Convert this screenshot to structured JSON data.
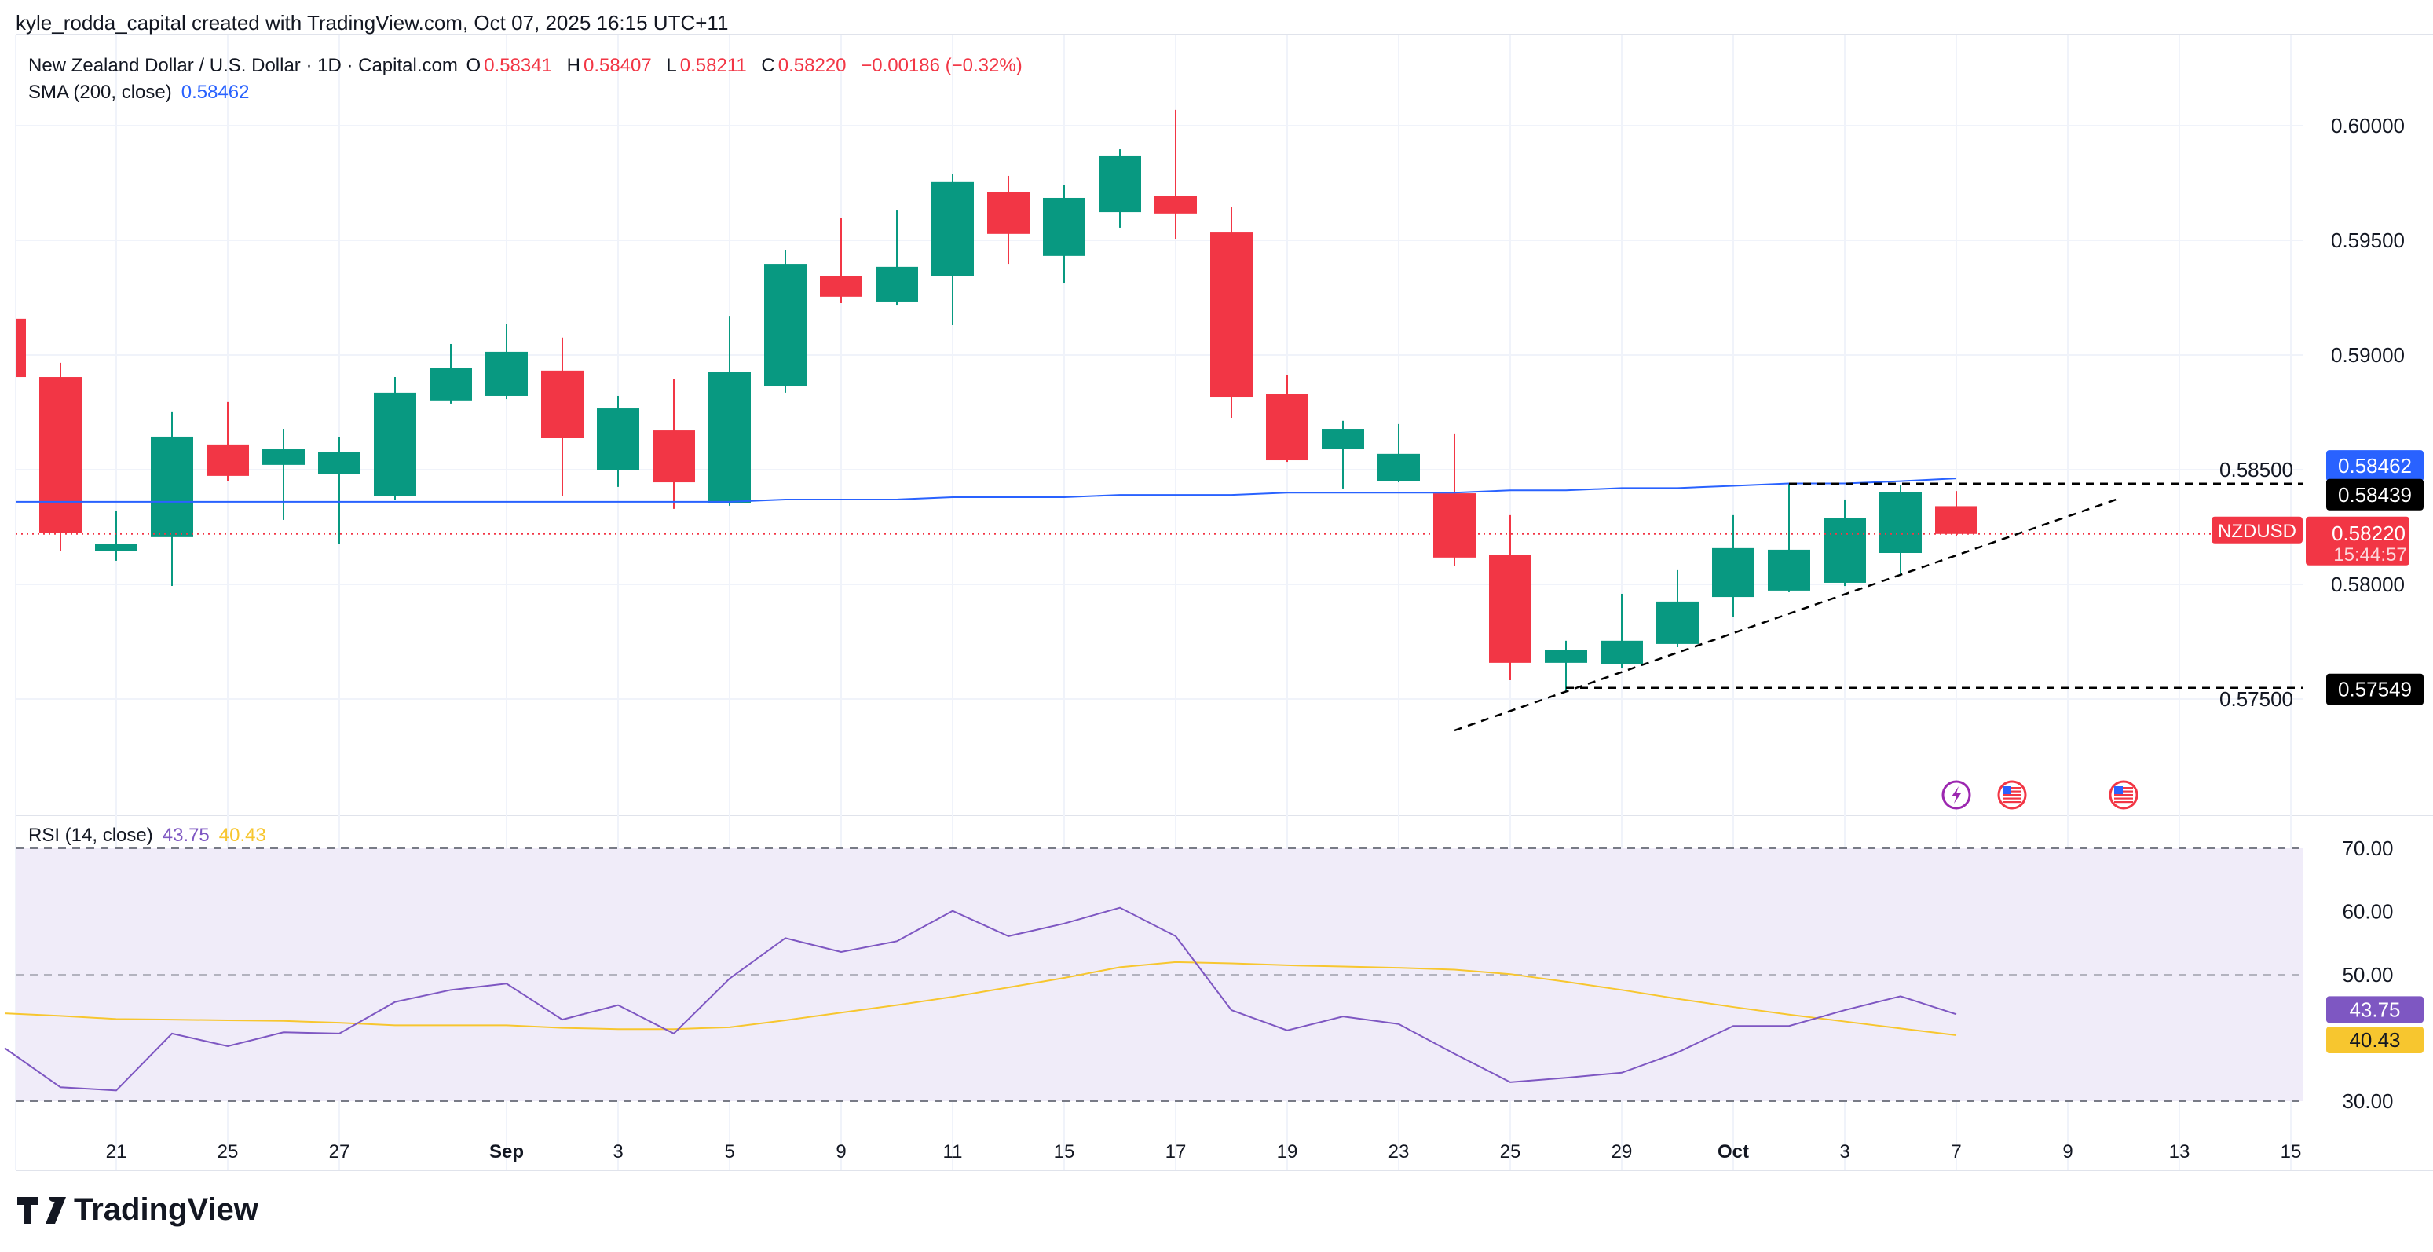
{
  "header": {
    "attribution": "kyle_rodda_capital created with TradingView.com, Oct 07, 2025 16:15 UTC+11"
  },
  "legend": {
    "symbol": "New Zealand Dollar / U.S. Dollar · 1D · Capital.com",
    "o_label": "O",
    "o": "0.58341",
    "h_label": "H",
    "h": "0.58407",
    "l_label": "L",
    "l": "0.58211",
    "c_label": "C",
    "c": "0.58220",
    "change": "−0.00186 (−0.32%)",
    "sma_label": "SMA (200, close)",
    "sma_value": "0.58462",
    "rsi_label": "RSI (14, close)",
    "rsi_value": "43.75",
    "rsi_ma_value": "40.43"
  },
  "brand": {
    "logo_text": "TradingView"
  },
  "colors": {
    "up": "#089981",
    "down": "#f23645",
    "sma": "#2962ff",
    "rsi": "#7e57c2",
    "rsi_ma": "#f7c62f",
    "rsi_band": "#f0ecf9"
  },
  "chart_data": [
    {
      "type": "candlestick",
      "symbol": "NZDUSD",
      "dates": [
        "Aug 19",
        "Aug 20",
        "Aug 21",
        "Aug 22",
        "Aug 25",
        "Aug 26",
        "Aug 27",
        "Aug 28",
        "Aug 29",
        "Sep 1",
        "Sep 2",
        "Sep 3",
        "Sep 4",
        "Sep 5",
        "Sep 8",
        "Sep 9",
        "Sep 10",
        "Sep 11",
        "Sep 12",
        "Sep 15",
        "Sep 16",
        "Sep 17",
        "Sep 18",
        "Sep 19",
        "Sep 22",
        "Sep 23",
        "Sep 24",
        "Sep 25",
        "Sep 26",
        "Sep 29",
        "Sep 30",
        "Oct 1",
        "Oct 2",
        "Oct 3",
        "Oct 6",
        "Oct 7"
      ],
      "ohlc": [
        [
          0.59158,
          0.5917,
          0.589,
          0.58904
        ],
        [
          0.58904,
          0.58966,
          0.58144,
          0.58226
        ],
        [
          0.58144,
          0.58322,
          0.58103,
          0.58178
        ],
        [
          0.58206,
          0.58754,
          0.57993,
          0.58644
        ],
        [
          0.5861,
          0.58795,
          0.58452,
          0.58473
        ],
        [
          0.58521,
          0.58678,
          0.58281,
          0.58589
        ],
        [
          0.5848,
          0.58644,
          0.58178,
          0.58576
        ],
        [
          0.58384,
          0.58904,
          0.5837,
          0.58836
        ],
        [
          0.58802,
          0.59048,
          0.58788,
          0.58945
        ],
        [
          0.58822,
          0.59137,
          0.58808,
          0.59014
        ],
        [
          0.58932,
          0.59076,
          0.58384,
          0.58637
        ],
        [
          0.585,
          0.58822,
          0.58425,
          0.58767
        ],
        [
          0.58671,
          0.58897,
          0.58329,
          0.58445
        ],
        [
          0.58356,
          0.59171,
          0.58343,
          0.58925
        ],
        [
          0.58863,
          0.59459,
          0.58836,
          0.59397
        ],
        [
          0.59343,
          0.59596,
          0.59226,
          0.59254
        ],
        [
          0.59233,
          0.5963,
          0.59219,
          0.59384
        ],
        [
          0.59343,
          0.59788,
          0.5913,
          0.59754
        ],
        [
          0.59712,
          0.59781,
          0.59397,
          0.59528
        ],
        [
          0.59432,
          0.5974,
          0.59315,
          0.59685
        ],
        [
          0.59623,
          0.59897,
          0.59555,
          0.5987
        ],
        [
          0.59692,
          0.60069,
          0.59507,
          0.59617
        ],
        [
          0.59534,
          0.59644,
          0.58726,
          0.58815
        ],
        [
          0.58829,
          0.58911,
          0.58534,
          0.58541
        ],
        [
          0.58589,
          0.58713,
          0.58418,
          0.58678
        ],
        [
          0.58452,
          0.58699,
          0.58445,
          0.58569
        ],
        [
          0.58397,
          0.58658,
          0.58082,
          0.58117
        ],
        [
          0.5813,
          0.58302,
          0.57582,
          0.57658
        ],
        [
          0.57658,
          0.57754,
          0.57534,
          0.57713
        ],
        [
          0.57651,
          0.57959,
          0.57637,
          0.57754
        ],
        [
          0.5774,
          0.58062,
          0.57726,
          0.57925
        ],
        [
          0.57945,
          0.58302,
          0.57856,
          0.58158
        ],
        [
          0.57973,
          0.58439,
          0.57966,
          0.58151
        ],
        [
          0.58007,
          0.5837,
          0.57993,
          0.58288
        ],
        [
          0.58137,
          0.58432,
          0.58041,
          0.58404
        ],
        [
          0.58341,
          0.58407,
          0.58211,
          0.5822
        ]
      ],
      "sma200": [
        0.5836,
        0.5836,
        0.5836,
        0.5836,
        0.5836,
        0.5836,
        0.5836,
        0.5836,
        0.5836,
        0.5836,
        0.5836,
        0.5836,
        0.5836,
        0.5836,
        0.5837,
        0.5837,
        0.5837,
        0.5838,
        0.5838,
        0.5838,
        0.5839,
        0.5839,
        0.5839,
        0.584,
        0.584,
        0.584,
        0.584,
        0.5841,
        0.5841,
        0.5842,
        0.5842,
        0.5843,
        0.5844,
        0.5844,
        0.5845,
        0.58462
      ],
      "y_ticks": [
        "0.60000",
        "0.59500",
        "0.59000",
        "0.58500",
        "0.58000",
        "0.57500"
      ],
      "x_ticks": [
        {
          "index": 2,
          "label": "21"
        },
        {
          "index": 4,
          "label": "25"
        },
        {
          "index": 6,
          "label": "27"
        },
        {
          "index": 9,
          "label": "Sep"
        },
        {
          "index": 11,
          "label": "3"
        },
        {
          "index": 13,
          "label": "5"
        },
        {
          "index": 15,
          "label": "9"
        },
        {
          "index": 17,
          "label": "11"
        },
        {
          "index": 19,
          "label": "15"
        },
        {
          "index": 21,
          "label": "17"
        },
        {
          "index": 23,
          "label": "19"
        },
        {
          "index": 25,
          "label": "23"
        },
        {
          "index": 27,
          "label": "25"
        },
        {
          "index": 29,
          "label": "29"
        },
        {
          "index": 31,
          "label": "Oct"
        },
        {
          "index": 33,
          "label": "3"
        },
        {
          "index": 35,
          "label": "7"
        },
        {
          "index": 37,
          "label": "9"
        },
        {
          "index": 39,
          "label": "13"
        },
        {
          "index": 41,
          "label": "15"
        }
      ],
      "ylim": [
        0.5715,
        0.602
      ],
      "drawings": {
        "resistance": {
          "price": 0.58439,
          "label": "0.58439",
          "from_index": 32
        },
        "support": {
          "price": 0.57549,
          "label": "0.57549",
          "from_index": 28
        },
        "trendline": {
          "from": {
            "index": 26,
            "price": 0.57363
          },
          "to": {
            "index": 37.95,
            "price": 0.58377
          }
        }
      },
      "price_badges": {
        "sma": "0.58462",
        "last": "0.58220",
        "countdown": "15:44:57",
        "symbol": "NZDUSD"
      },
      "events": [
        {
          "index": 35,
          "icon": "lightning-icon"
        },
        {
          "index": 36,
          "icon": "us-flag-icon"
        },
        {
          "index": 38,
          "icon": "us-flag-icon"
        }
      ]
    },
    {
      "type": "line",
      "title": "RSI (14, close)",
      "rsi": [
        38.4,
        32.2,
        31.7,
        40.7,
        38.7,
        40.9,
        40.7,
        45.7,
        47.6,
        48.6,
        42.9,
        45.2,
        40.7,
        49.4,
        55.8,
        53.6,
        55.3,
        60.1,
        56.1,
        58.1,
        60.6,
        56.1,
        44.4,
        41.2,
        43.4,
        42.2,
        37.5,
        33.0,
        33.7,
        34.5,
        37.7,
        41.9,
        41.9,
        44.4,
        46.6,
        43.75
      ],
      "rsi_ma": [
        43.9,
        43.5,
        43.0,
        42.9,
        42.8,
        42.7,
        42.4,
        42.0,
        42.0,
        42.0,
        41.6,
        41.4,
        41.4,
        41.7,
        42.8,
        44.0,
        45.2,
        46.5,
        48.0,
        49.5,
        51.2,
        52.0,
        51.8,
        51.5,
        51.3,
        51.1,
        50.8,
        50.1,
        48.9,
        47.6,
        46.2,
        44.9,
        43.7,
        42.6,
        41.5,
        40.43
      ],
      "y_ticks": [
        "70.00",
        "60.00",
        "50.00",
        "30.00"
      ],
      "levels": [
        70,
        50,
        30
      ],
      "ylim": [
        28,
        72
      ],
      "badges": {
        "rsi": "43.75",
        "rsi_ma": "40.43"
      }
    }
  ]
}
